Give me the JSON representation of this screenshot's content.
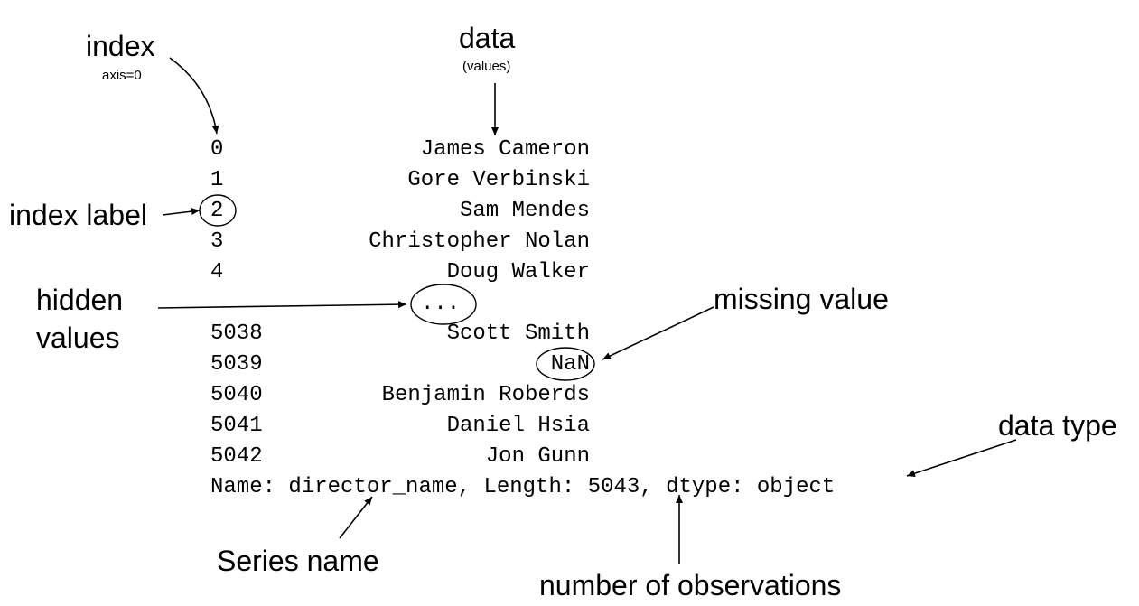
{
  "labels": {
    "index": "index",
    "axis": "axis=0",
    "data": "data",
    "values_note": "(values)",
    "index_label": "index label",
    "hidden_line1": "hidden",
    "hidden_line2": "values",
    "missing_value": "missing value",
    "data_type": "data type",
    "series_name": "Series name",
    "num_observations": "number of observations"
  },
  "series": {
    "rows": [
      {
        "index": "0",
        "value": "James Cameron"
      },
      {
        "index": "1",
        "value": "Gore Verbinski"
      },
      {
        "index": "2",
        "value": "Sam Mendes"
      },
      {
        "index": "3",
        "value": "Christopher Nolan"
      },
      {
        "index": "4",
        "value": "Doug Walker"
      },
      {
        "index": "",
        "value": "..."
      },
      {
        "index": "5038",
        "value": "Scott Smith"
      },
      {
        "index": "5039",
        "value": "NaN"
      },
      {
        "index": "5040",
        "value": "Benjamin Roberds"
      },
      {
        "index": "5041",
        "value": "Daniel Hsia"
      },
      {
        "index": "5042",
        "value": "Jon Gunn"
      }
    ],
    "footer": "Name: director_name, Length: 5043, dtype: object"
  }
}
